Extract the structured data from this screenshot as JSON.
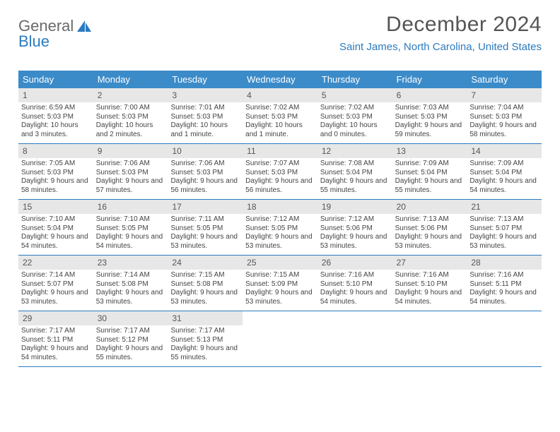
{
  "brand": {
    "part1": "General",
    "part2": "Blue"
  },
  "title": "December 2024",
  "location": "Saint James, North Carolina, United States",
  "colors": {
    "header_bg": "#3b8bc9",
    "header_text": "#ffffff",
    "daynum_bg": "#e7e7e7",
    "rule": "#2c7bbf",
    "accent": "#2c7bbf",
    "title_color": "#555555",
    "body_text": "#444444"
  },
  "daysOfWeek": [
    "Sunday",
    "Monday",
    "Tuesday",
    "Wednesday",
    "Thursday",
    "Friday",
    "Saturday"
  ],
  "weeks": [
    [
      {
        "n": "1",
        "sunrise": "Sunrise: 6:59 AM",
        "sunset": "Sunset: 5:03 PM",
        "daylight": "Daylight: 10 hours and 3 minutes."
      },
      {
        "n": "2",
        "sunrise": "Sunrise: 7:00 AM",
        "sunset": "Sunset: 5:03 PM",
        "daylight": "Daylight: 10 hours and 2 minutes."
      },
      {
        "n": "3",
        "sunrise": "Sunrise: 7:01 AM",
        "sunset": "Sunset: 5:03 PM",
        "daylight": "Daylight: 10 hours and 1 minute."
      },
      {
        "n": "4",
        "sunrise": "Sunrise: 7:02 AM",
        "sunset": "Sunset: 5:03 PM",
        "daylight": "Daylight: 10 hours and 1 minute."
      },
      {
        "n": "5",
        "sunrise": "Sunrise: 7:02 AM",
        "sunset": "Sunset: 5:03 PM",
        "daylight": "Daylight: 10 hours and 0 minutes."
      },
      {
        "n": "6",
        "sunrise": "Sunrise: 7:03 AM",
        "sunset": "Sunset: 5:03 PM",
        "daylight": "Daylight: 9 hours and 59 minutes."
      },
      {
        "n": "7",
        "sunrise": "Sunrise: 7:04 AM",
        "sunset": "Sunset: 5:03 PM",
        "daylight": "Daylight: 9 hours and 58 minutes."
      }
    ],
    [
      {
        "n": "8",
        "sunrise": "Sunrise: 7:05 AM",
        "sunset": "Sunset: 5:03 PM",
        "daylight": "Daylight: 9 hours and 58 minutes."
      },
      {
        "n": "9",
        "sunrise": "Sunrise: 7:06 AM",
        "sunset": "Sunset: 5:03 PM",
        "daylight": "Daylight: 9 hours and 57 minutes."
      },
      {
        "n": "10",
        "sunrise": "Sunrise: 7:06 AM",
        "sunset": "Sunset: 5:03 PM",
        "daylight": "Daylight: 9 hours and 56 minutes."
      },
      {
        "n": "11",
        "sunrise": "Sunrise: 7:07 AM",
        "sunset": "Sunset: 5:03 PM",
        "daylight": "Daylight: 9 hours and 56 minutes."
      },
      {
        "n": "12",
        "sunrise": "Sunrise: 7:08 AM",
        "sunset": "Sunset: 5:04 PM",
        "daylight": "Daylight: 9 hours and 55 minutes."
      },
      {
        "n": "13",
        "sunrise": "Sunrise: 7:09 AM",
        "sunset": "Sunset: 5:04 PM",
        "daylight": "Daylight: 9 hours and 55 minutes."
      },
      {
        "n": "14",
        "sunrise": "Sunrise: 7:09 AM",
        "sunset": "Sunset: 5:04 PM",
        "daylight": "Daylight: 9 hours and 54 minutes."
      }
    ],
    [
      {
        "n": "15",
        "sunrise": "Sunrise: 7:10 AM",
        "sunset": "Sunset: 5:04 PM",
        "daylight": "Daylight: 9 hours and 54 minutes."
      },
      {
        "n": "16",
        "sunrise": "Sunrise: 7:10 AM",
        "sunset": "Sunset: 5:05 PM",
        "daylight": "Daylight: 9 hours and 54 minutes."
      },
      {
        "n": "17",
        "sunrise": "Sunrise: 7:11 AM",
        "sunset": "Sunset: 5:05 PM",
        "daylight": "Daylight: 9 hours and 53 minutes."
      },
      {
        "n": "18",
        "sunrise": "Sunrise: 7:12 AM",
        "sunset": "Sunset: 5:05 PM",
        "daylight": "Daylight: 9 hours and 53 minutes."
      },
      {
        "n": "19",
        "sunrise": "Sunrise: 7:12 AM",
        "sunset": "Sunset: 5:06 PM",
        "daylight": "Daylight: 9 hours and 53 minutes."
      },
      {
        "n": "20",
        "sunrise": "Sunrise: 7:13 AM",
        "sunset": "Sunset: 5:06 PM",
        "daylight": "Daylight: 9 hours and 53 minutes."
      },
      {
        "n": "21",
        "sunrise": "Sunrise: 7:13 AM",
        "sunset": "Sunset: 5:07 PM",
        "daylight": "Daylight: 9 hours and 53 minutes."
      }
    ],
    [
      {
        "n": "22",
        "sunrise": "Sunrise: 7:14 AM",
        "sunset": "Sunset: 5:07 PM",
        "daylight": "Daylight: 9 hours and 53 minutes."
      },
      {
        "n": "23",
        "sunrise": "Sunrise: 7:14 AM",
        "sunset": "Sunset: 5:08 PM",
        "daylight": "Daylight: 9 hours and 53 minutes."
      },
      {
        "n": "24",
        "sunrise": "Sunrise: 7:15 AM",
        "sunset": "Sunset: 5:08 PM",
        "daylight": "Daylight: 9 hours and 53 minutes."
      },
      {
        "n": "25",
        "sunrise": "Sunrise: 7:15 AM",
        "sunset": "Sunset: 5:09 PM",
        "daylight": "Daylight: 9 hours and 53 minutes."
      },
      {
        "n": "26",
        "sunrise": "Sunrise: 7:16 AM",
        "sunset": "Sunset: 5:10 PM",
        "daylight": "Daylight: 9 hours and 54 minutes."
      },
      {
        "n": "27",
        "sunrise": "Sunrise: 7:16 AM",
        "sunset": "Sunset: 5:10 PM",
        "daylight": "Daylight: 9 hours and 54 minutes."
      },
      {
        "n": "28",
        "sunrise": "Sunrise: 7:16 AM",
        "sunset": "Sunset: 5:11 PM",
        "daylight": "Daylight: 9 hours and 54 minutes."
      }
    ],
    [
      {
        "n": "29",
        "sunrise": "Sunrise: 7:17 AM",
        "sunset": "Sunset: 5:11 PM",
        "daylight": "Daylight: 9 hours and 54 minutes."
      },
      {
        "n": "30",
        "sunrise": "Sunrise: 7:17 AM",
        "sunset": "Sunset: 5:12 PM",
        "daylight": "Daylight: 9 hours and 55 minutes."
      },
      {
        "n": "31",
        "sunrise": "Sunrise: 7:17 AM",
        "sunset": "Sunset: 5:13 PM",
        "daylight": "Daylight: 9 hours and 55 minutes."
      },
      null,
      null,
      null,
      null
    ]
  ]
}
